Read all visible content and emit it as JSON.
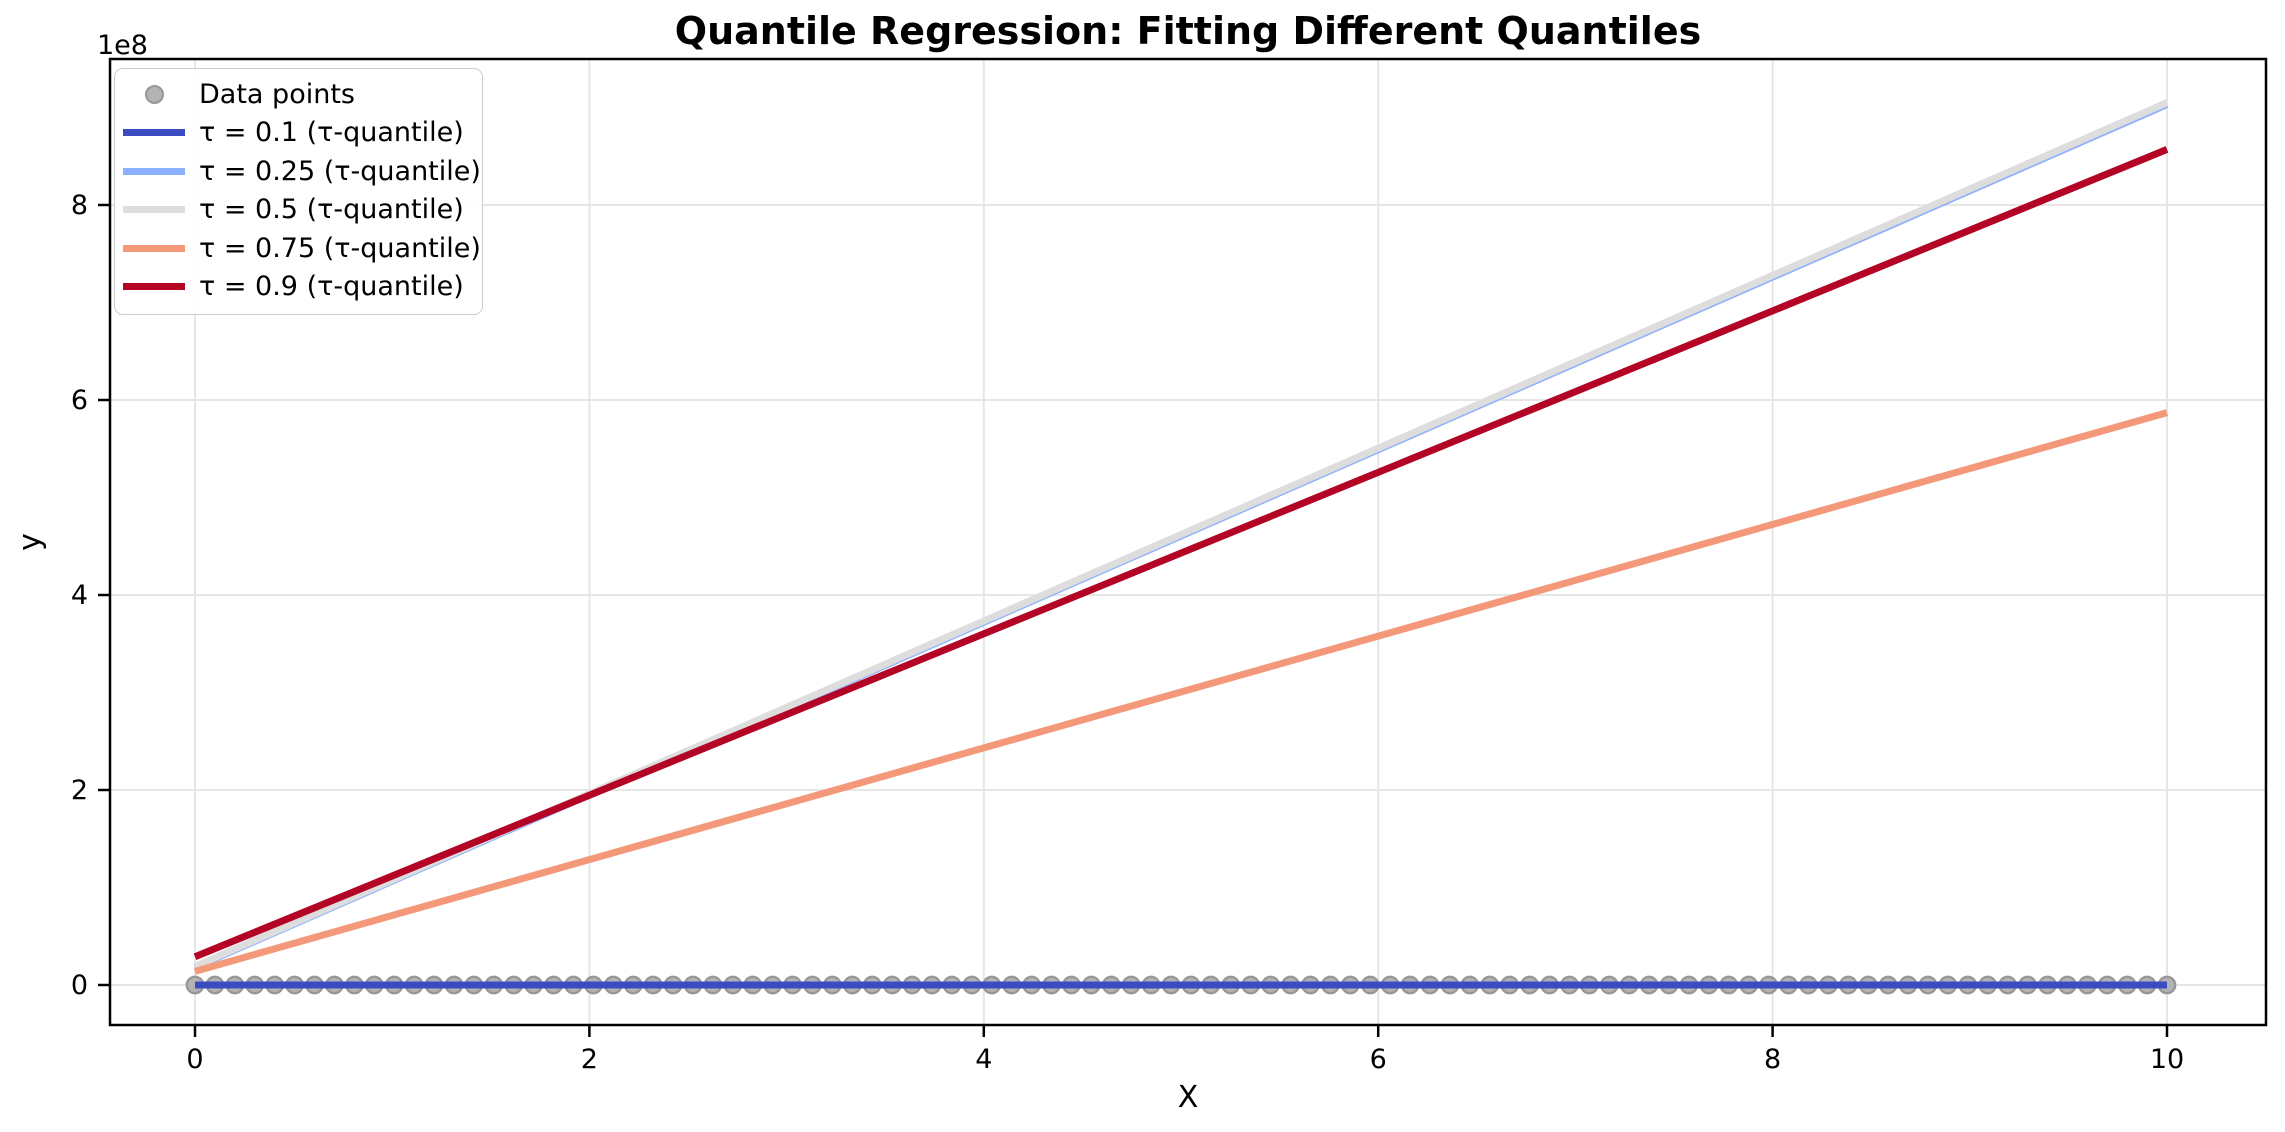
{
  "chart_data": {
    "type": "line",
    "title": "Quantile Regression: Fitting Different Quantiles",
    "xlabel": "X",
    "ylabel": "y",
    "y_offset_text": "1e8",
    "y_unit_multiplier": 100000000,
    "x_ticks": [
      0,
      2,
      4,
      6,
      8,
      10
    ],
    "y_ticks": [
      0,
      2,
      4,
      6,
      8
    ],
    "xlim": [
      -0.5,
      10.5
    ],
    "ylim_e8": [
      -0.41,
      9.52
    ],
    "grid": true,
    "legend_position": "upper left",
    "background_color": "#ffffff",
    "spine_color": "#000000",
    "grid_color": "#e6e6e6",
    "scatter": {
      "label": "Data points",
      "n_points": 100,
      "x_range": [
        0,
        10
      ],
      "y_value_e8": 0,
      "marker_fill": "#b3b3b3",
      "marker_edge": "#979797"
    },
    "series": [
      {
        "label": "τ = 0.1 (τ-quantile)",
        "tau": 0.1,
        "color": "#3b4cc0",
        "x": [
          0,
          10
        ],
        "y_e8": [
          0.0,
          0.0
        ]
      },
      {
        "label": "τ = 0.25 (τ-quantile)",
        "tau": 0.25,
        "color": "#8db0fe",
        "x": [
          0,
          10
        ],
        "y_e8": [
          0.18,
          9.03
        ]
      },
      {
        "label": "τ = 0.5 (τ-quantile)",
        "tau": 0.5,
        "color": "#dddddd",
        "x": [
          0,
          10
        ],
        "y_e8": [
          0.19,
          9.05
        ]
      },
      {
        "label": "τ = 0.75 (τ-quantile)",
        "tau": 0.75,
        "color": "#f4987a",
        "x": [
          0,
          10
        ],
        "y_e8": [
          0.14,
          5.87
        ]
      },
      {
        "label": "τ = 0.9 (τ-quantile)",
        "tau": 0.9,
        "color": "#b40426",
        "x": [
          0,
          10
        ],
        "y_e8": [
          0.29,
          8.57
        ]
      }
    ]
  }
}
